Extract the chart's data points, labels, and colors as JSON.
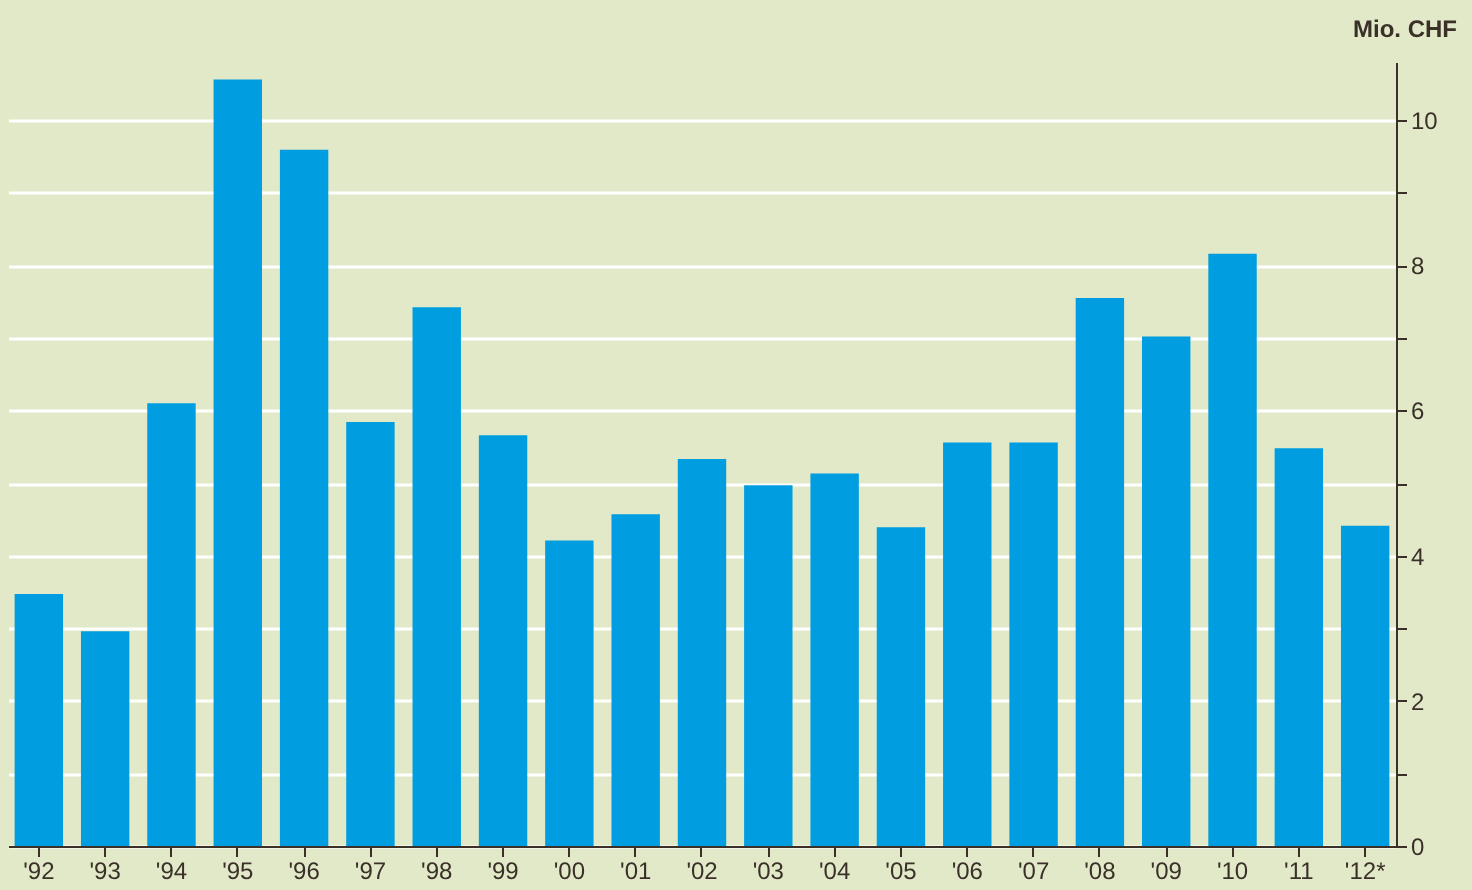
{
  "chart_data": {
    "type": "bar",
    "ylabel": "Mio. CHF",
    "categories": [
      "'92",
      "'93",
      "'94",
      "'95",
      "'96",
      "'97",
      "'98",
      "'99",
      "'00",
      "'01",
      "'02",
      "'03",
      "'04",
      "'05",
      "'06",
      "'07",
      "'08",
      "'09",
      "'10",
      "'11",
      "'12*"
    ],
    "values": [
      3.47,
      2.96,
      6.1,
      10.56,
      9.59,
      5.84,
      7.42,
      5.66,
      4.21,
      4.57,
      5.33,
      4.97,
      5.13,
      4.39,
      5.56,
      5.56,
      7.55,
      7.02,
      8.16,
      5.48,
      4.41
    ],
    "color": "#009de0",
    "ylim": [
      0,
      10.8
    ],
    "yticks": [
      0,
      {
        "value": 1,
        "label": null
      },
      2,
      {
        "value": 3,
        "label": null
      },
      4,
      {
        "value": 5,
        "label": null
      },
      6,
      {
        "value": 7,
        "label": null
      },
      8,
      {
        "value": 9,
        "label": null
      },
      10
    ],
    "grid": true
  }
}
